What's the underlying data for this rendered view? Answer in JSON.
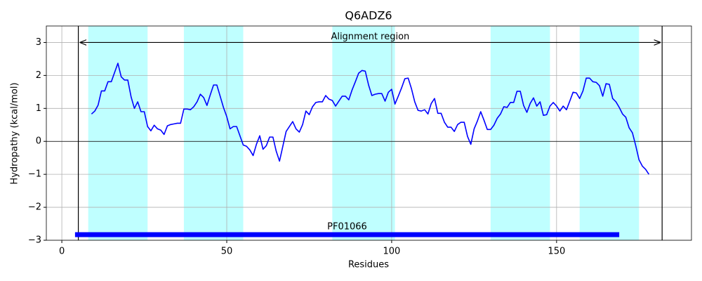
{
  "chart_data": {
    "type": "line",
    "title": "Q6ADZ6",
    "xlabel": "Residues",
    "ylabel": "Hydropathy (kcal/mol)",
    "xlim": [
      -4.7,
      190.9
    ],
    "ylim": [
      -3,
      3.5
    ],
    "xticks": [
      0,
      50,
      100,
      150
    ],
    "yticks": [
      {
        "value": -3,
        "label": "−3"
      },
      {
        "value": -2,
        "label": "−2"
      },
      {
        "value": -1,
        "label": "−1"
      },
      0,
      1,
      2,
      3
    ],
    "grid": true,
    "hline": 0,
    "highlight_spans": [
      [
        8,
        26
      ],
      [
        37,
        55
      ],
      [
        82,
        101
      ],
      [
        130,
        148
      ],
      [
        157,
        175
      ]
    ],
    "highlight_color": "#bfffff",
    "alignment_region": {
      "text": "Alignment region",
      "start": 5,
      "end": 182,
      "y": 3
    },
    "domain": {
      "text": "PF01066",
      "start": 4,
      "end": 169,
      "y": -2.83,
      "color": "#0000ff"
    },
    "color": "#0000ff",
    "x": [
      9,
      10,
      11,
      12,
      13,
      14,
      15,
      16,
      17,
      18,
      19,
      20,
      21,
      22,
      23,
      24,
      25,
      26,
      27,
      28,
      29,
      30,
      31,
      32,
      33,
      34,
      35,
      36,
      37,
      38,
      39,
      40,
      41,
      42,
      43,
      44,
      45,
      46,
      47,
      48,
      49,
      50,
      51,
      52,
      53,
      54,
      55,
      56,
      57,
      58,
      59,
      60,
      61,
      62,
      63,
      64,
      65,
      66,
      67,
      68,
      69,
      70,
      71,
      72,
      73,
      74,
      75,
      76,
      77,
      78,
      79,
      80,
      81,
      82,
      83,
      84,
      85,
      86,
      87,
      88,
      89,
      90,
      91,
      92,
      93,
      94,
      95,
      96,
      97,
      98,
      99,
      100,
      101,
      102,
      103,
      104,
      105,
      106,
      107,
      108,
      109,
      110,
      111,
      112,
      113,
      114,
      115,
      116,
      117,
      118,
      119,
      120,
      121,
      122,
      123,
      124,
      125,
      126,
      127,
      128,
      129,
      130,
      131,
      132,
      133,
      134,
      135,
      136,
      137,
      138,
      139,
      140,
      141,
      142,
      143,
      144,
      145,
      146,
      147,
      148,
      149,
      150,
      151,
      152,
      153,
      154,
      155,
      156,
      157,
      158,
      159,
      160,
      161,
      162,
      163,
      164,
      165,
      166,
      167,
      168,
      169,
      170,
      171,
      172,
      173,
      174,
      175,
      176,
      177,
      178
    ],
    "values": [
      0.83,
      0.92,
      1.1,
      1.53,
      1.53,
      1.81,
      1.81,
      2.09,
      2.37,
      1.96,
      1.86,
      1.86,
      1.35,
      1.0,
      1.2,
      0.9,
      0.9,
      0.45,
      0.32,
      0.49,
      0.38,
      0.34,
      0.21,
      0.47,
      0.51,
      0.53,
      0.55,
      0.55,
      0.98,
      0.98,
      0.96,
      1.05,
      1.2,
      1.43,
      1.33,
      1.09,
      1.41,
      1.71,
      1.71,
      1.37,
      1.03,
      0.75,
      0.38,
      0.45,
      0.45,
      0.17,
      -0.11,
      -0.15,
      -0.26,
      -0.43,
      -0.09,
      0.17,
      -0.24,
      -0.13,
      0.13,
      0.13,
      -0.3,
      -0.6,
      -0.15,
      0.3,
      0.45,
      0.6,
      0.38,
      0.28,
      0.51,
      0.92,
      0.81,
      1.05,
      1.18,
      1.2,
      1.2,
      1.39,
      1.28,
      1.24,
      1.07,
      1.22,
      1.37,
      1.37,
      1.26,
      1.56,
      1.81,
      2.07,
      2.15,
      2.13,
      1.71,
      1.39,
      1.43,
      1.45,
      1.45,
      1.22,
      1.49,
      1.58,
      1.13,
      1.37,
      1.62,
      1.9,
      1.92,
      1.6,
      1.2,
      0.94,
      0.92,
      0.96,
      0.83,
      1.15,
      1.3,
      0.85,
      0.85,
      0.58,
      0.43,
      0.43,
      0.3,
      0.51,
      0.58,
      0.58,
      0.15,
      -0.09,
      0.38,
      0.62,
      0.9,
      0.64,
      0.36,
      0.36,
      0.49,
      0.7,
      0.83,
      1.05,
      1.03,
      1.18,
      1.18,
      1.52,
      1.52,
      1.09,
      0.88,
      1.15,
      1.32,
      1.07,
      1.2,
      0.79,
      0.81,
      1.07,
      1.18,
      1.07,
      0.92,
      1.07,
      0.96,
      1.22,
      1.49,
      1.47,
      1.3,
      1.53,
      1.92,
      1.92,
      1.81,
      1.79,
      1.69,
      1.37,
      1.75,
      1.73,
      1.3,
      1.2,
      1.03,
      0.83,
      0.73,
      0.41,
      0.26,
      -0.13,
      -0.56,
      -0.75,
      -0.85,
      -1.0
    ]
  }
}
